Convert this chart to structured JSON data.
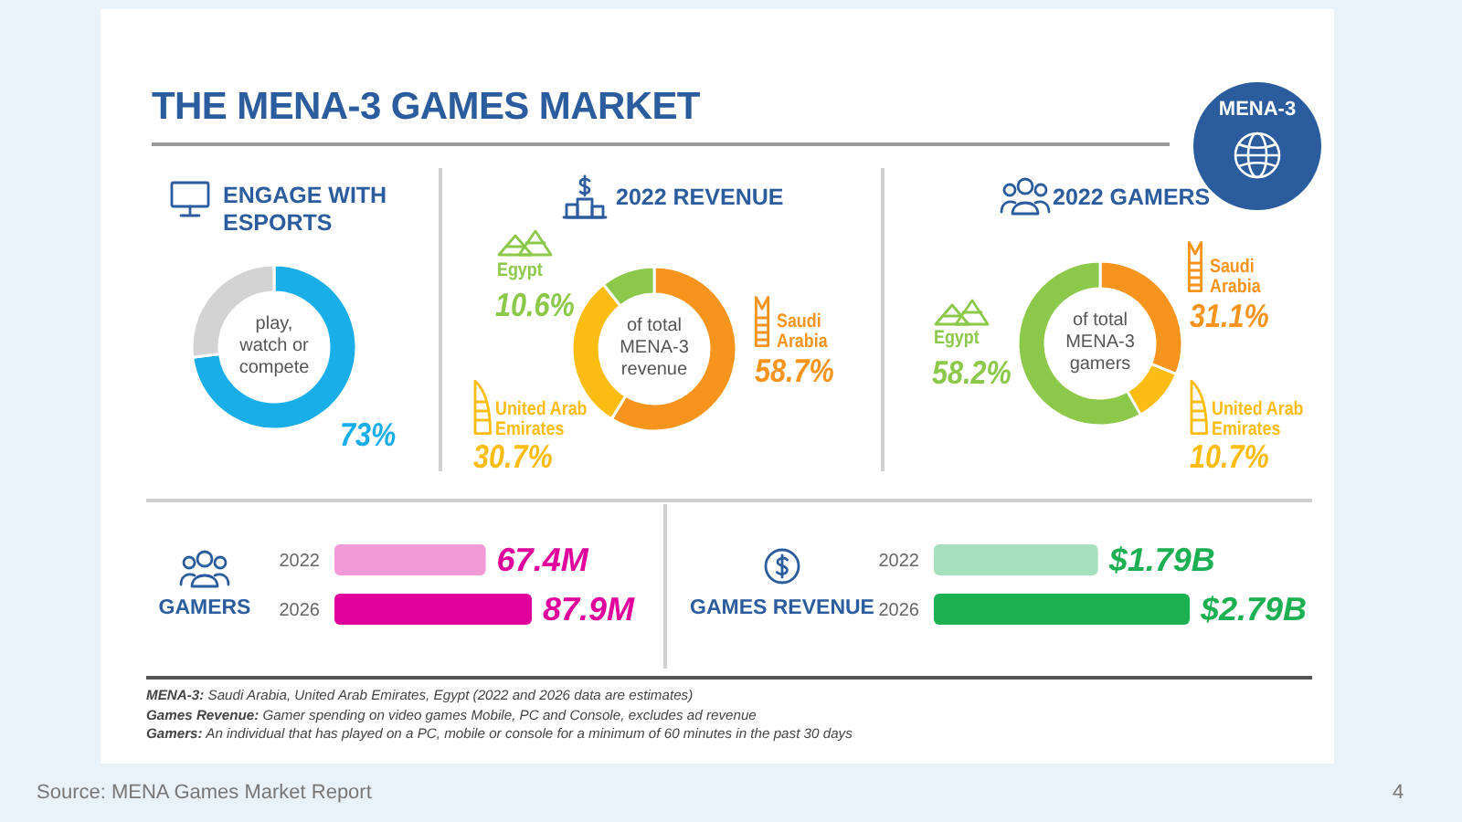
{
  "chart_data": [
    {
      "type": "donut",
      "title": "THE MENA-3 GAMES MARKET",
      "subtitle": "ENGAGE WITH ESPORTS",
      "categories": [
        null,
        null
      ],
      "values": [
        73,
        27
      ],
      "colors": [
        "#1aaee8",
        "#d3d3d3"
      ],
      "value_labels": [
        "73%",
        null
      ],
      "annotations": [
        "play, watch or compete",
        "MENA-3"
      ]
    },
    {
      "type": "donut",
      "title": "2022 REVENUE",
      "categories": [
        "Saudi Arabia",
        "United Arab Emirates",
        "Egypt"
      ],
      "values": [
        58.7,
        30.7,
        10.6
      ],
      "colors": [
        "#f7941d",
        "#fbbc14",
        "#8cc94a"
      ],
      "value_labels": [
        "58.7%",
        "30.7%",
        "10.6%"
      ],
      "legend": "left",
      "annotations": [
        "of total MENA-3 revenue"
      ]
    },
    {
      "type": "donut",
      "title": "2022 GAMERS",
      "categories": [
        "Saudi Arabia",
        "United Arab Emirates",
        "Egypt"
      ],
      "values": [
        31.1,
        10.7,
        58.2
      ],
      "colors": [
        "#f7941d",
        "#fbbc14",
        "#8cc94a"
      ],
      "value_labels": [
        "31.1%",
        "10.7%",
        "58.2%"
      ],
      "legend": "right",
      "annotations": [
        "of total MENA-3 gamers"
      ]
    },
    {
      "type": "bar",
      "orientation": "horizontal",
      "title": "GAMERS",
      "categories": [
        "2022",
        "2026"
      ],
      "values": [
        67.4,
        87.9
      ],
      "colors": [
        "#f29ad8",
        "#e0009b"
      ],
      "value_labels": [
        "67.4M",
        "87.9M"
      ]
    },
    {
      "type": "bar",
      "orientation": "horizontal",
      "title": "GAMES REVENUE",
      "categories": [
        "2022",
        "2026"
      ],
      "values": [
        1.79,
        2.79
      ],
      "colors": [
        "#a6e0bd",
        "#1db053"
      ],
      "value_labels": [
        "$1.79B",
        "$2.79B"
      ],
      "annotations": [
        "MENA-3: Saudi Arabia, United Arab Emirates, Egypt (2022 and 2026 data are estimates)",
        "Games Revenue: Gamer spending on video games Mobile, PC and Console, excludes ad revenue",
        "Gamers: An individual that has played on a PC, mobile or console for a minimum of 60 minutes in the past 30 days",
        "Source: MENA Games Market Report",
        "4"
      ]
    }
  ]
}
